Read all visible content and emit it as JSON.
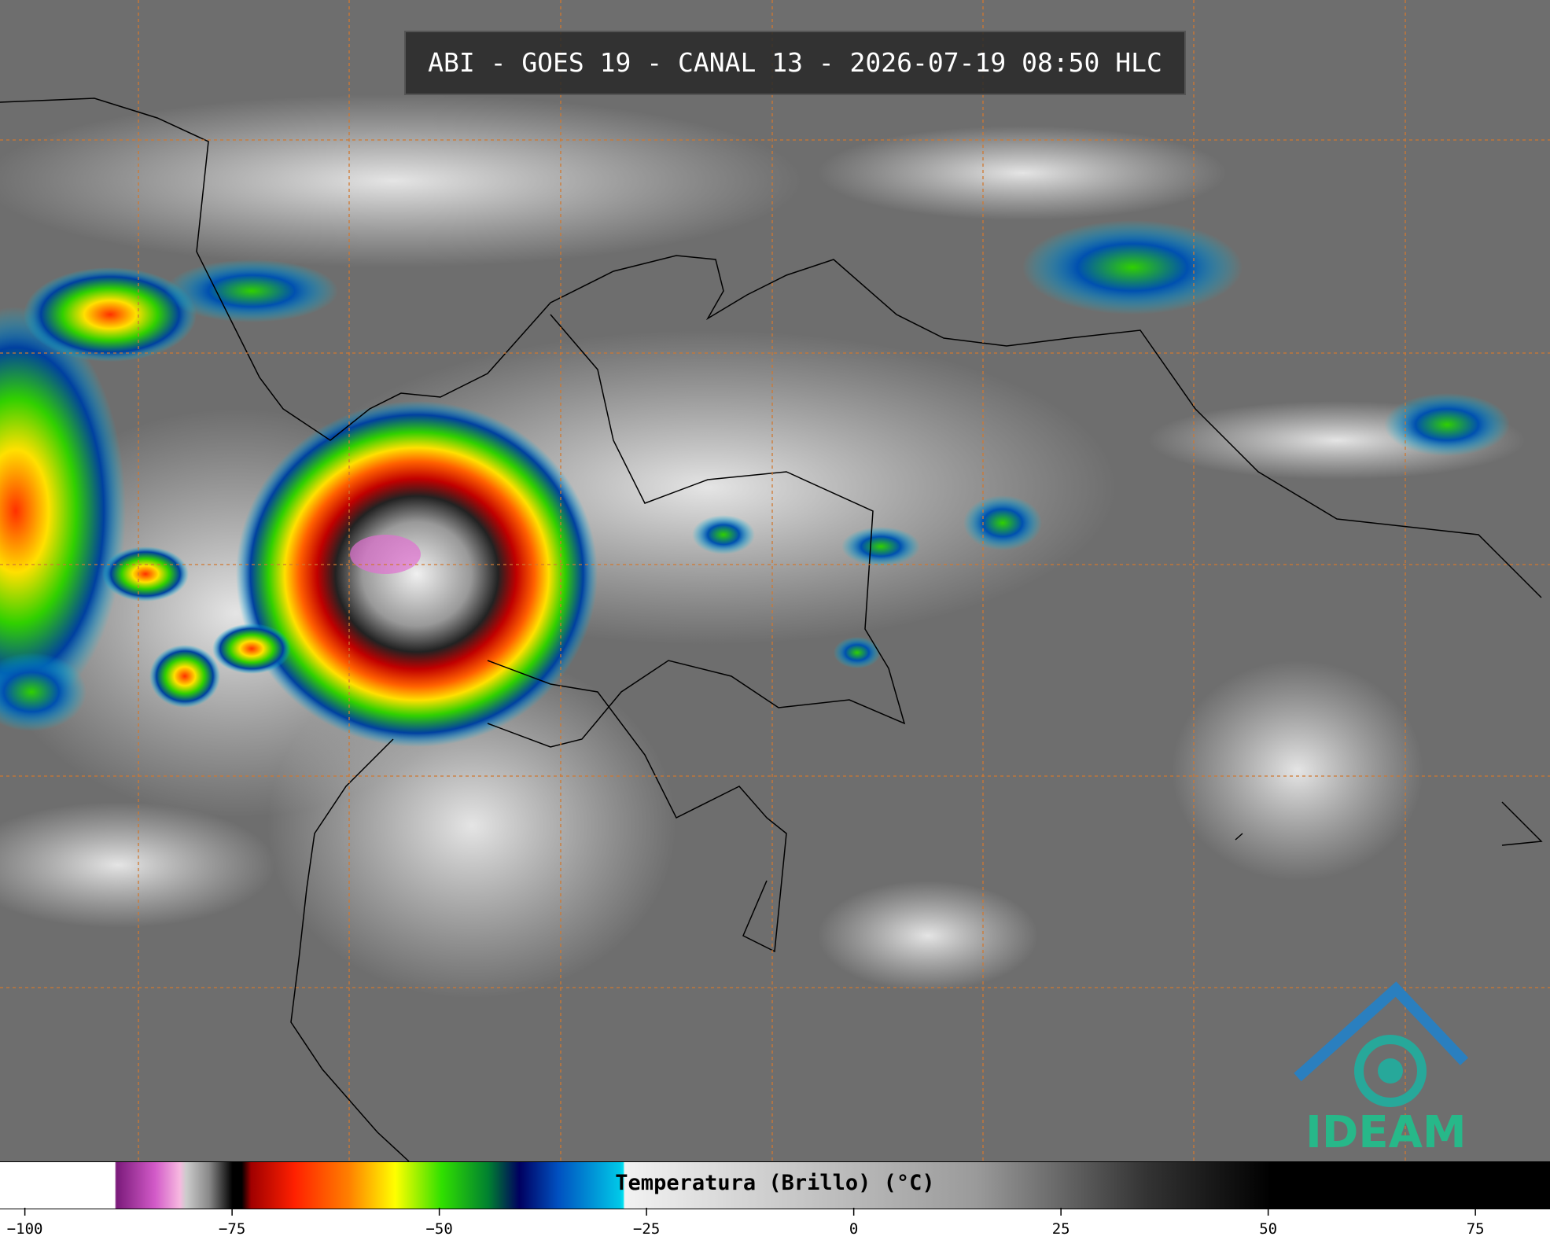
{
  "header": {
    "title": "ABI - GOES 19 - CANAL 13 - 2026-07-19 08:50 HLC"
  },
  "logo": {
    "text": "IDEAM"
  },
  "colorbar": {
    "label": "Temperatura (Brillo) (°C)",
    "lim": [
      -103,
      84
    ],
    "ticks": [
      {
        "value": -100,
        "label": "−100"
      },
      {
        "value": -75,
        "label": "−75"
      },
      {
        "value": -50,
        "label": "−50"
      },
      {
        "value": -25,
        "label": "−25"
      },
      0,
      25,
      50,
      75
    ]
  }
}
